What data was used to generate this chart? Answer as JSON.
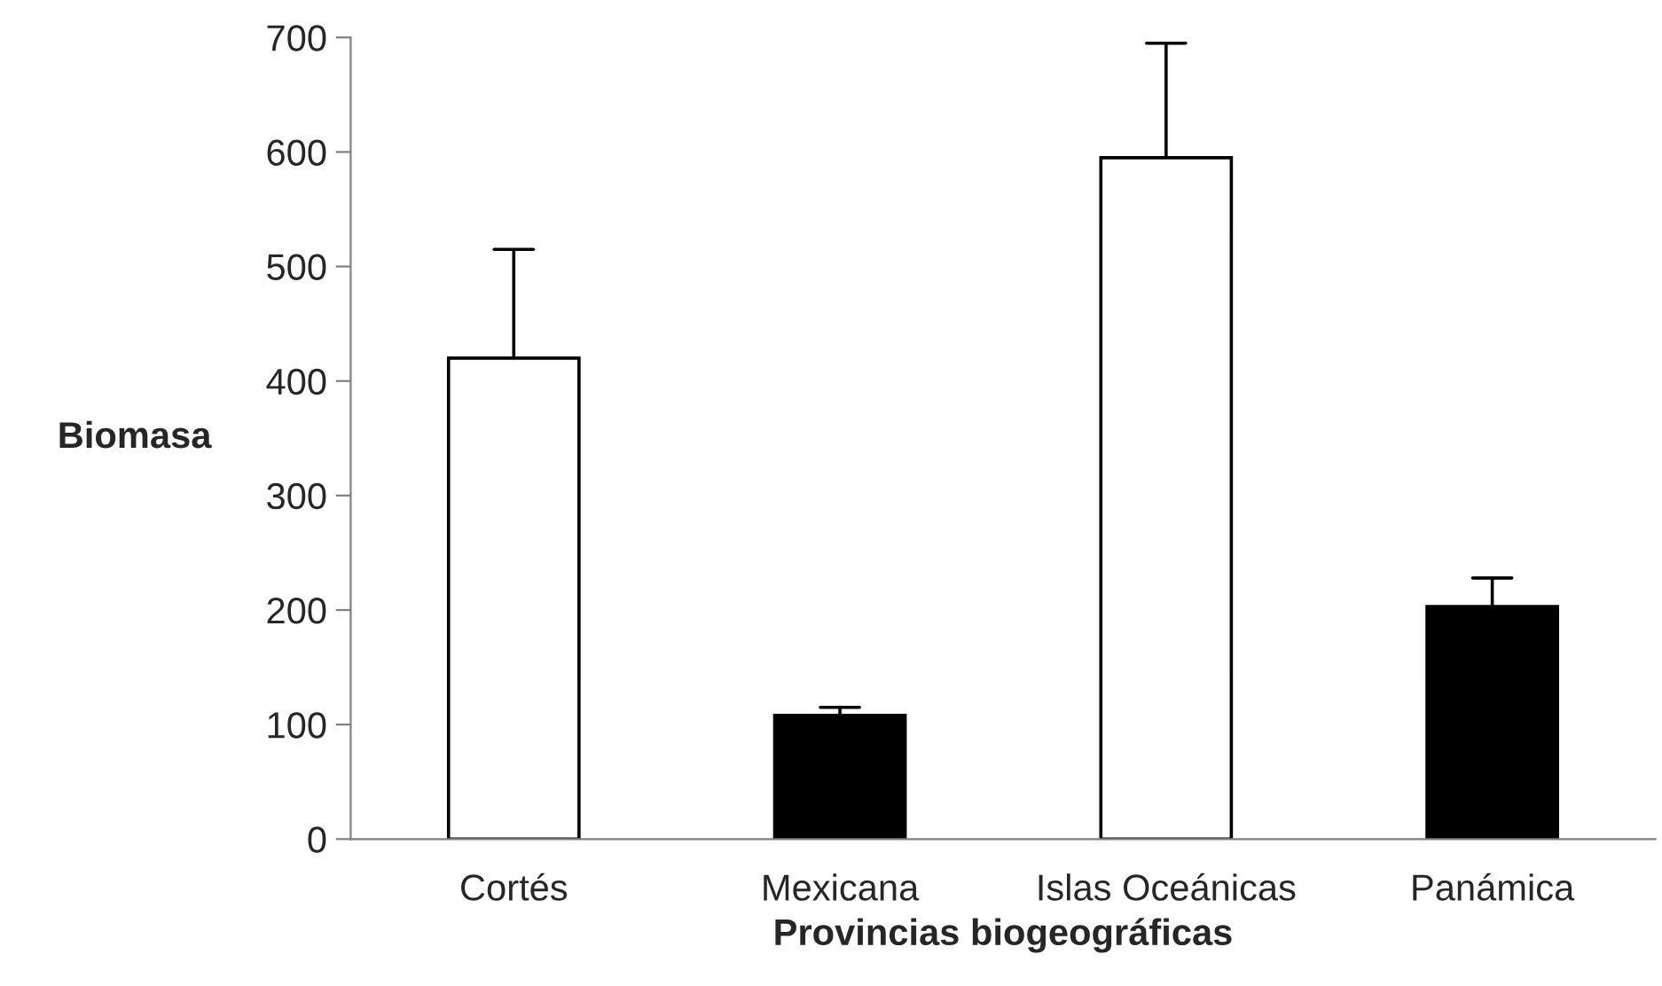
{
  "chart_data": {
    "type": "bar",
    "xlabel": "Provincias biogeográficas",
    "ylabel": "Biomasa",
    "categories": [
      "Cortés",
      "Mexicana",
      "Islas Oceánicas",
      "Panámica"
    ],
    "values": [
      420,
      108,
      595,
      203
    ],
    "colors": [
      "#ffffff",
      "#000000",
      "#ffffff",
      "#000000"
    ],
    "errors": [
      [
        420,
        515
      ],
      [
        108,
        115
      ],
      [
        595,
        695
      ],
      [
        203,
        228
      ]
    ],
    "ylim": [
      0,
      700
    ],
    "yticks": [
      0,
      100,
      200,
      300,
      400,
      500,
      600,
      700
    ],
    "grid": false,
    "legend": false
  }
}
